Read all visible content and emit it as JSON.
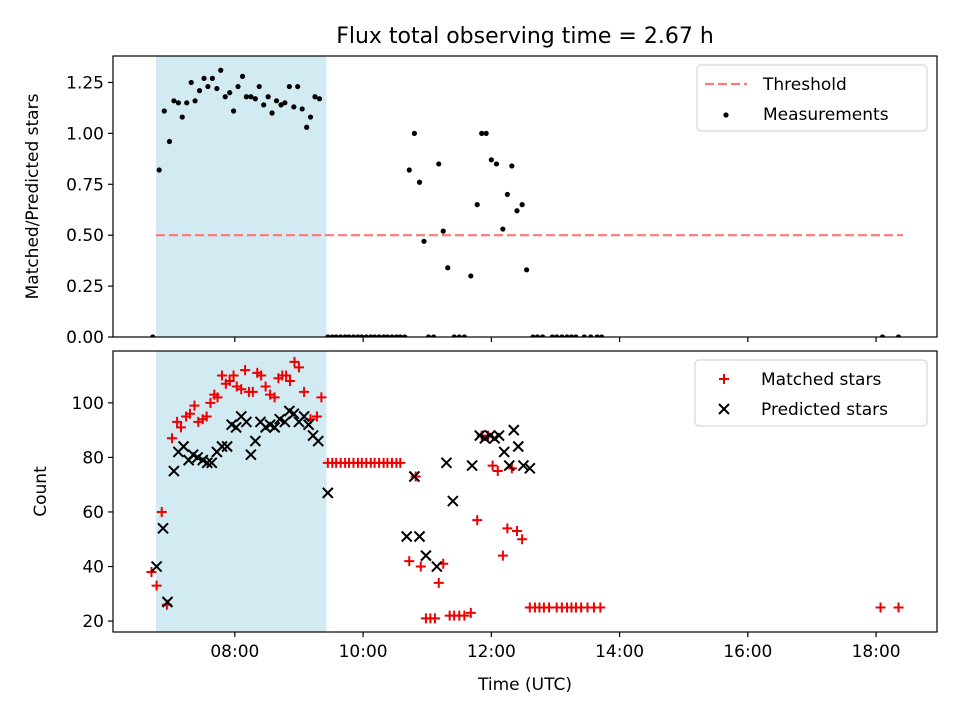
{
  "title": "Flux total observing time = 2.67 h",
  "chart_data": [
    {
      "type": "scatter",
      "ylabel": "Matched/Predicted stars",
      "x_unit": "hours UTC",
      "xlim": [
        6.1,
        18.95
      ],
      "ylim": [
        0.0,
        1.38
      ],
      "yticks": [
        0.0,
        0.25,
        0.5,
        0.75,
        1.0,
        1.25
      ],
      "ytick_labels": [
        "0.00",
        "0.25",
        "0.50",
        "0.75",
        "1.00",
        "1.25"
      ],
      "shaded_span": [
        6.77,
        9.43
      ],
      "threshold": {
        "name": "Threshold",
        "y": 0.5,
        "x_range": [
          6.77,
          18.42
        ],
        "color": "#ff7777"
      },
      "legend": {
        "position": "top-right",
        "entries": [
          "Threshold",
          "Measurements"
        ]
      },
      "series": [
        {
          "name": "Measurements",
          "color": "#000000",
          "points": [
            [
              6.72,
              0.0
            ],
            [
              6.82,
              0.82
            ],
            [
              6.9,
              1.11
            ],
            [
              6.98,
              0.96
            ],
            [
              7.05,
              1.16
            ],
            [
              7.12,
              1.15
            ],
            [
              7.18,
              1.08
            ],
            [
              7.25,
              1.15
            ],
            [
              7.32,
              1.25
            ],
            [
              7.38,
              1.16
            ],
            [
              7.45,
              1.21
            ],
            [
              7.52,
              1.27
            ],
            [
              7.58,
              1.23
            ],
            [
              7.65,
              1.27
            ],
            [
              7.72,
              1.22
            ],
            [
              7.78,
              1.31
            ],
            [
              7.85,
              1.18
            ],
            [
              7.92,
              1.2
            ],
            [
              7.98,
              1.11
            ],
            [
              8.05,
              1.23
            ],
            [
              8.12,
              1.28
            ],
            [
              8.18,
              1.18
            ],
            [
              8.25,
              1.18
            ],
            [
              8.32,
              1.17
            ],
            [
              8.38,
              1.23
            ],
            [
              8.45,
              1.14
            ],
            [
              8.52,
              1.18
            ],
            [
              8.58,
              1.1
            ],
            [
              8.65,
              1.16
            ],
            [
              8.72,
              1.14
            ],
            [
              8.78,
              1.15
            ],
            [
              8.85,
              1.23
            ],
            [
              8.92,
              1.13
            ],
            [
              8.98,
              1.23
            ],
            [
              9.05,
              1.12
            ],
            [
              9.12,
              1.03
            ],
            [
              9.18,
              1.08
            ],
            [
              9.25,
              1.18
            ],
            [
              9.32,
              1.17
            ],
            [
              9.45,
              0.0
            ],
            [
              9.52,
              0.0
            ],
            [
              9.58,
              0.0
            ],
            [
              9.65,
              0.0
            ],
            [
              9.72,
              0.0
            ],
            [
              9.78,
              0.0
            ],
            [
              9.85,
              0.0
            ],
            [
              9.92,
              0.0
            ],
            [
              9.98,
              0.0
            ],
            [
              10.05,
              0.0
            ],
            [
              10.12,
              0.0
            ],
            [
              10.18,
              0.0
            ],
            [
              10.25,
              0.0
            ],
            [
              10.32,
              0.0
            ],
            [
              10.38,
              0.0
            ],
            [
              10.45,
              0.0
            ],
            [
              10.52,
              0.0
            ],
            [
              10.58,
              0.0
            ],
            [
              10.65,
              0.0
            ],
            [
              10.72,
              0.82
            ],
            [
              10.8,
              1.0
            ],
            [
              10.88,
              0.76
            ],
            [
              10.95,
              0.47
            ],
            [
              11.02,
              0.0
            ],
            [
              11.1,
              0.0
            ],
            [
              11.18,
              0.85
            ],
            [
              11.25,
              0.52
            ],
            [
              11.32,
              0.34
            ],
            [
              11.42,
              0.0
            ],
            [
              11.5,
              0.0
            ],
            [
              11.58,
              0.0
            ],
            [
              11.68,
              0.3
            ],
            [
              11.78,
              0.65
            ],
            [
              11.85,
              1.0
            ],
            [
              11.92,
              1.0
            ],
            [
              12.0,
              0.87
            ],
            [
              12.08,
              0.85
            ],
            [
              12.18,
              0.53
            ],
            [
              12.25,
              0.7
            ],
            [
              12.32,
              0.84
            ],
            [
              12.4,
              0.62
            ],
            [
              12.48,
              0.65
            ],
            [
              12.55,
              0.33
            ],
            [
              12.65,
              0.0
            ],
            [
              12.72,
              0.0
            ],
            [
              12.8,
              0.0
            ],
            [
              12.95,
              0.0
            ],
            [
              13.02,
              0.0
            ],
            [
              13.1,
              0.0
            ],
            [
              13.18,
              0.0
            ],
            [
              13.25,
              0.0
            ],
            [
              13.32,
              0.0
            ],
            [
              13.45,
              0.0
            ],
            [
              13.55,
              0.0
            ],
            [
              13.65,
              0.0
            ],
            [
              13.72,
              0.0
            ],
            [
              18.1,
              0.0
            ],
            [
              18.35,
              0.0
            ]
          ]
        }
      ]
    },
    {
      "type": "scatter",
      "xlabel": "Time (UTC)",
      "ylabel": "Count",
      "x_unit": "hours UTC",
      "xlim": [
        6.1,
        18.95
      ],
      "ylim": [
        16,
        119
      ],
      "xticks": [
        8,
        10,
        12,
        14,
        16,
        18
      ],
      "xtick_labels": [
        "08:00",
        "10:00",
        "12:00",
        "14:00",
        "16:00",
        "18:00"
      ],
      "yticks": [
        20,
        40,
        60,
        80,
        100
      ],
      "ytick_labels": [
        "20",
        "40",
        "60",
        "80",
        "100"
      ],
      "shaded_span": [
        6.77,
        9.43
      ],
      "legend": {
        "position": "top-right",
        "entries": [
          "Matched stars",
          "Predicted stars"
        ]
      },
      "series": [
        {
          "name": "Matched stars",
          "marker": "plus",
          "color": "#ee0000",
          "points": [
            [
              6.7,
              38
            ],
            [
              6.78,
              33
            ],
            [
              6.86,
              60
            ],
            [
              6.94,
              26
            ],
            [
              7.02,
              87
            ],
            [
              7.1,
              93
            ],
            [
              7.16,
              91
            ],
            [
              7.24,
              95
            ],
            [
              7.3,
              96
            ],
            [
              7.37,
              99
            ],
            [
              7.43,
              93
            ],
            [
              7.5,
              94
            ],
            [
              7.56,
              95
            ],
            [
              7.62,
              100
            ],
            [
              7.68,
              103
            ],
            [
              7.73,
              102
            ],
            [
              7.8,
              110
            ],
            [
              7.86,
              107
            ],
            [
              7.92,
              108
            ],
            [
              7.98,
              110
            ],
            [
              8.03,
              106
            ],
            [
              8.1,
              105
            ],
            [
              8.16,
              112
            ],
            [
              8.22,
              104
            ],
            [
              8.28,
              104
            ],
            [
              8.35,
              111
            ],
            [
              8.41,
              110
            ],
            [
              8.48,
              106
            ],
            [
              8.55,
              103
            ],
            [
              8.62,
              102
            ],
            [
              8.68,
              109
            ],
            [
              8.74,
              110
            ],
            [
              8.8,
              110
            ],
            [
              8.86,
              108
            ],
            [
              8.93,
              115
            ],
            [
              9.0,
              113
            ],
            [
              9.08,
              104
            ],
            [
              9.18,
              94
            ],
            [
              9.28,
              95
            ],
            [
              9.35,
              102
            ],
            [
              9.45,
              78
            ],
            [
              9.52,
              78
            ],
            [
              9.58,
              78
            ],
            [
              9.65,
              78
            ],
            [
              9.72,
              78
            ],
            [
              9.78,
              78
            ],
            [
              9.85,
              78
            ],
            [
              9.92,
              78
            ],
            [
              9.98,
              78
            ],
            [
              10.05,
              78
            ],
            [
              10.12,
              78
            ],
            [
              10.18,
              78
            ],
            [
              10.25,
              78
            ],
            [
              10.32,
              78
            ],
            [
              10.38,
              78
            ],
            [
              10.45,
              78
            ],
            [
              10.52,
              78
            ],
            [
              10.58,
              78
            ],
            [
              10.72,
              42
            ],
            [
              10.82,
              73
            ],
            [
              10.9,
              40
            ],
            [
              10.98,
              21
            ],
            [
              11.05,
              21
            ],
            [
              11.12,
              21
            ],
            [
              11.18,
              34
            ],
            [
              11.25,
              41
            ],
            [
              11.35,
              22
            ],
            [
              11.42,
              22
            ],
            [
              11.5,
              22
            ],
            [
              11.58,
              22
            ],
            [
              11.68,
              23
            ],
            [
              11.78,
              57
            ],
            [
              11.85,
              88
            ],
            [
              11.95,
              88
            ],
            [
              12.02,
              77
            ],
            [
              12.1,
              75
            ],
            [
              12.18,
              44
            ],
            [
              12.25,
              54
            ],
            [
              12.32,
              76
            ],
            [
              12.4,
              53
            ],
            [
              12.48,
              50
            ],
            [
              12.6,
              25
            ],
            [
              12.68,
              25
            ],
            [
              12.75,
              25
            ],
            [
              12.82,
              25
            ],
            [
              12.9,
              25
            ],
            [
              13.02,
              25
            ],
            [
              13.1,
              25
            ],
            [
              13.18,
              25
            ],
            [
              13.25,
              25
            ],
            [
              13.32,
              25
            ],
            [
              13.4,
              25
            ],
            [
              13.5,
              25
            ],
            [
              13.6,
              25
            ],
            [
              13.7,
              25
            ],
            [
              18.07,
              25
            ],
            [
              18.35,
              25
            ]
          ]
        },
        {
          "name": "Predicted stars",
          "marker": "x",
          "color": "#000000",
          "points": [
            [
              6.78,
              40
            ],
            [
              6.88,
              54
            ],
            [
              6.95,
              27
            ],
            [
              7.05,
              75
            ],
            [
              7.12,
              82
            ],
            [
              7.2,
              84
            ],
            [
              7.28,
              79
            ],
            [
              7.35,
              81
            ],
            [
              7.42,
              80
            ],
            [
              7.5,
              79
            ],
            [
              7.57,
              78
            ],
            [
              7.64,
              78
            ],
            [
              7.72,
              82
            ],
            [
              7.8,
              84
            ],
            [
              7.88,
              84
            ],
            [
              7.95,
              92
            ],
            [
              8.02,
              91
            ],
            [
              8.1,
              95
            ],
            [
              8.18,
              93
            ],
            [
              8.25,
              81
            ],
            [
              8.32,
              86
            ],
            [
              8.4,
              93
            ],
            [
              8.48,
              91
            ],
            [
              8.55,
              92
            ],
            [
              8.62,
              91
            ],
            [
              8.7,
              94
            ],
            [
              8.78,
              93
            ],
            [
              8.85,
              97
            ],
            [
              8.92,
              96
            ],
            [
              9.0,
              93
            ],
            [
              9.08,
              95
            ],
            [
              9.15,
              92
            ],
            [
              9.22,
              88
            ],
            [
              9.3,
              86
            ],
            [
              9.45,
              67
            ],
            [
              10.68,
              51
            ],
            [
              10.8,
              73
            ],
            [
              10.88,
              51
            ],
            [
              10.98,
              44
            ],
            [
              11.15,
              40
            ],
            [
              11.3,
              78
            ],
            [
              11.4,
              64
            ],
            [
              11.7,
              77
            ],
            [
              11.82,
              88
            ],
            [
              11.9,
              87
            ],
            [
              11.98,
              88
            ],
            [
              12.05,
              87
            ],
            [
              12.12,
              88
            ],
            [
              12.2,
              82
            ],
            [
              12.28,
              77
            ],
            [
              12.35,
              90
            ],
            [
              12.42,
              84
            ],
            [
              12.5,
              77
            ],
            [
              12.6,
              76
            ]
          ]
        }
      ]
    }
  ],
  "colors": {
    "shade": "#add8e6",
    "axes": "#000000"
  }
}
